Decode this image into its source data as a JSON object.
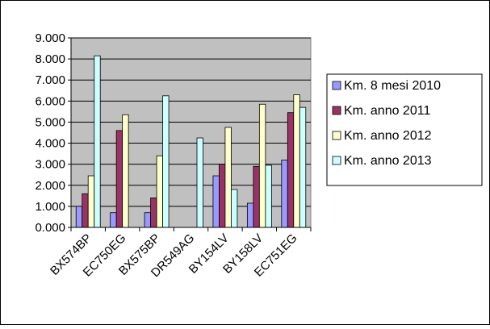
{
  "chart_data": {
    "type": "bar",
    "categories": [
      "BX574BP",
      "EC750EG",
      "BX575BP",
      "DR549AG",
      "BY154LV",
      "BY158LV",
      "EC751EG"
    ],
    "series": [
      {
        "name": "Km.  8 mesi 2010",
        "color": "#9999ff",
        "values": [
          1000,
          700,
          700,
          0,
          2450,
          1150,
          3200
        ]
      },
      {
        "name": "Km.  anno 2011",
        "color": "#993366",
        "values": [
          1600,
          4600,
          1400,
          0,
          3000,
          2900,
          5450
        ]
      },
      {
        "name": "Km.  anno 2012",
        "color": "#ffffcc",
        "values": [
          2450,
          5350,
          3400,
          0,
          4750,
          5850,
          6300
        ]
      },
      {
        "name": "Km. anno 2013",
        "color": "#ccffff",
        "values": [
          8150,
          0,
          6250,
          4250,
          1800,
          2950,
          5700
        ]
      }
    ],
    "ylim": [
      0,
      9000
    ],
    "yticks": [
      "0.000",
      "1.000",
      "2.000",
      "3.000",
      "4.000",
      "5.000",
      "6.000",
      "7.000",
      "8.000",
      "9.000"
    ],
    "grid": true,
    "plot_background": "#c0c0c0",
    "legend_position": "right"
  }
}
